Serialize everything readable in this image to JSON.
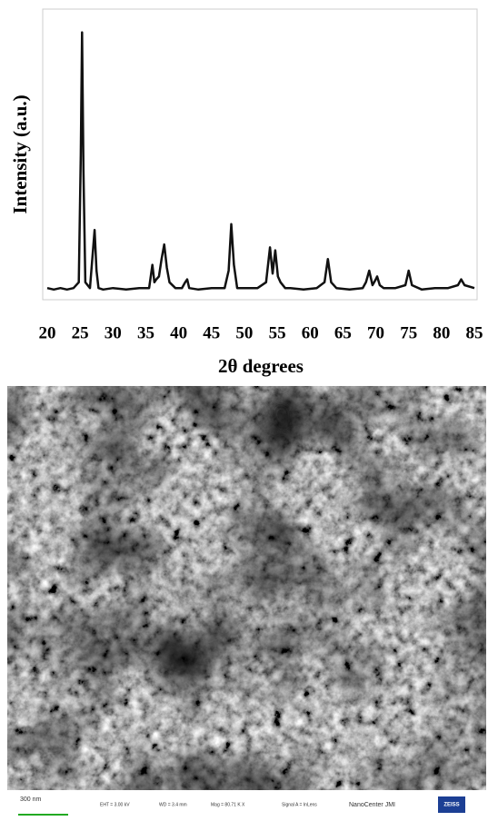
{
  "chart_data": {
    "type": "line",
    "y_label": "Intensity (a.u.)",
    "x_label": "2θ degrees",
    "x": [
      20,
      21,
      22,
      23,
      24,
      24.8,
      25.1,
      25.3,
      25.5,
      25.8,
      26.5,
      27.2,
      27.5,
      27.8,
      28.5,
      30,
      32,
      34,
      35.5,
      36,
      36.3,
      36.6,
      37,
      37.4,
      37.8,
      38.2,
      38.6,
      39.5,
      40.5,
      41,
      41.3,
      41.6,
      43,
      45,
      47,
      47.6,
      48,
      48.4,
      48.9,
      50,
      52,
      53.3,
      53.9,
      54.3,
      54.7,
      55.1,
      55.5,
      56.2,
      57,
      59,
      61,
      62.2,
      62.7,
      63.2,
      64,
      66,
      68,
      68.5,
      69,
      69.5,
      70,
      70.2,
      70.6,
      71.2,
      73,
      74.5,
      75,
      75.5,
      77,
      79,
      81,
      82.5,
      83,
      83.5,
      85
    ],
    "values": [
      4,
      3.5,
      4,
      3.5,
      4,
      6,
      50,
      92,
      45,
      6,
      4,
      24,
      10,
      4,
      3.5,
      4,
      3.5,
      4,
      4,
      12,
      6,
      7,
      8,
      14,
      19,
      11,
      6,
      4,
      4,
      6,
      7,
      4,
      3.5,
      4,
      4,
      10,
      26,
      12,
      4,
      4,
      4,
      6,
      18,
      9,
      17,
      8,
      6,
      4,
      4,
      3.5,
      4,
      6,
      14,
      6,
      4,
      3.5,
      4,
      6,
      10,
      5,
      7,
      8,
      5,
      4,
      4,
      5,
      10,
      5,
      3.5,
      4,
      4,
      5,
      7,
      5,
      4
    ],
    "color": "#111111",
    "xlim": [
      20,
      85
    ],
    "xticks": [
      20,
      25,
      30,
      35,
      40,
      45,
      50,
      55,
      60,
      65,
      70,
      75,
      80,
      85
    ],
    "ylim": [
      0,
      100
    ]
  },
  "image_info": {
    "scale_bar": "300 nm",
    "eht": "EHT = 3.00 kV",
    "wd": "WD = 3.4 mm",
    "mag": "Mag = 80.71 K X",
    "signal": "Signal A = InLens",
    "center": "NanoCenter JMI",
    "logo": "ZEISS"
  }
}
